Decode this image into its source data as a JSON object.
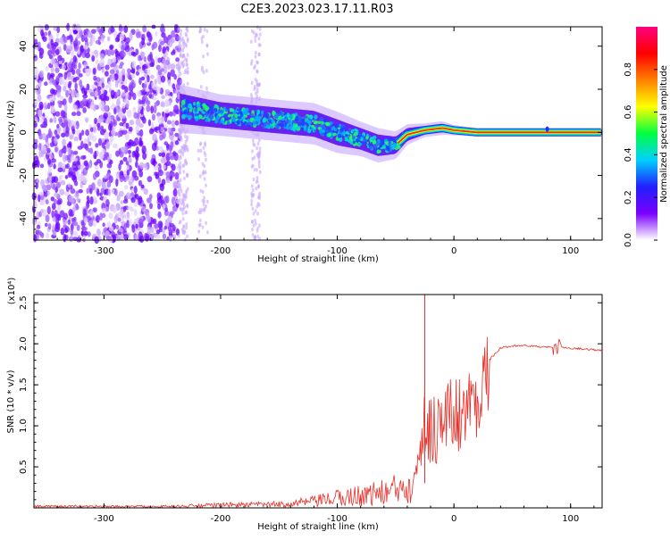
{
  "figure_title": "C2E3.2023.023.17.11.R03",
  "colors": {
    "background": "#ffffff",
    "snr_line": "#e8302a",
    "frame": "#000000"
  },
  "chart_data": [
    {
      "type": "heatmap",
      "xlabel": "Height of straight line (km)",
      "ylabel": "Frequency (Hz)",
      "xlim": [
        -360,
        127
      ],
      "ylim": [
        -50,
        49
      ],
      "x_ticks": [
        -300,
        -200,
        -100,
        0,
        100
      ],
      "y_ticks": [
        -40,
        -20,
        0,
        20,
        40
      ],
      "colorbar": {
        "label": "Normalized spectral amplitude",
        "range": [
          0.0,
          1.0
        ],
        "ticks": [
          0.0,
          0.2,
          0.4,
          0.6,
          0.8
        ],
        "colormap": [
          "#ffffff",
          "#7a00ff",
          "#2020ff",
          "#00d0ff",
          "#00ff40",
          "#ffff00",
          "#ff8000",
          "#ff0000",
          "#ff0080"
        ]
      },
      "noise_region": {
        "x_range": [
          -360,
          -235
        ],
        "freq_range": [
          -50,
          49
        ]
      },
      "signal_ridge": [
        {
          "x": -235,
          "f": 11,
          "width": 7
        },
        {
          "x": -200,
          "f": 8,
          "width": 6
        },
        {
          "x": -160,
          "f": 6,
          "width": 6
        },
        {
          "x": -120,
          "f": 4,
          "width": 6
        },
        {
          "x": -100,
          "f": 0,
          "width": 6
        },
        {
          "x": -80,
          "f": -3,
          "width": 5
        },
        {
          "x": -65,
          "f": -6,
          "width": 5
        },
        {
          "x": -50,
          "f": -6,
          "width": 4
        },
        {
          "x": -40,
          "f": -1,
          "width": 3
        },
        {
          "x": -25,
          "f": 1,
          "width": 2
        },
        {
          "x": -10,
          "f": 2,
          "width": 2
        },
        {
          "x": 0,
          "f": 1,
          "width": 1.5
        },
        {
          "x": 20,
          "f": 0,
          "width": 1.2
        },
        {
          "x": 127,
          "f": 0,
          "width": 1.2
        }
      ]
    },
    {
      "type": "line",
      "xlabel": "Height of straight line (km)",
      "ylabel": "SNR (10 * v/v)",
      "y_multiplier": "(x10⁴)",
      "xlim": [
        -360,
        127
      ],
      "ylim": [
        0,
        2.6
      ],
      "x_ticks": [
        -300,
        -200,
        -100,
        0,
        100
      ],
      "y_ticks": [
        0.5,
        1.0,
        1.5,
        2.0,
        2.5
      ],
      "series": [
        {
          "x": [
            -360,
            -300,
            -240,
            -200,
            -150,
            -120,
            -100,
            -80,
            -60,
            -45,
            -35,
            -30,
            -25,
            -20,
            -15,
            -10,
            -5,
            0,
            10,
            20,
            30,
            40,
            50,
            60,
            70,
            80,
            90,
            100,
            110,
            120,
            127
          ],
          "y": [
            0.02,
            0.02,
            0.02,
            0.04,
            0.05,
            0.09,
            0.14,
            0.18,
            0.22,
            0.28,
            0.45,
            0.9,
            1.05,
            1.08,
            1.1,
            1.15,
            1.2,
            1.25,
            1.28,
            1.45,
            1.8,
            1.95,
            1.98,
            1.98,
            1.97,
            1.96,
            1.96,
            1.95,
            1.94,
            1.93,
            1.92
          ]
        }
      ],
      "annotations": {
        "spike": {
          "x": -25,
          "y": 2.6
        }
      }
    }
  ]
}
